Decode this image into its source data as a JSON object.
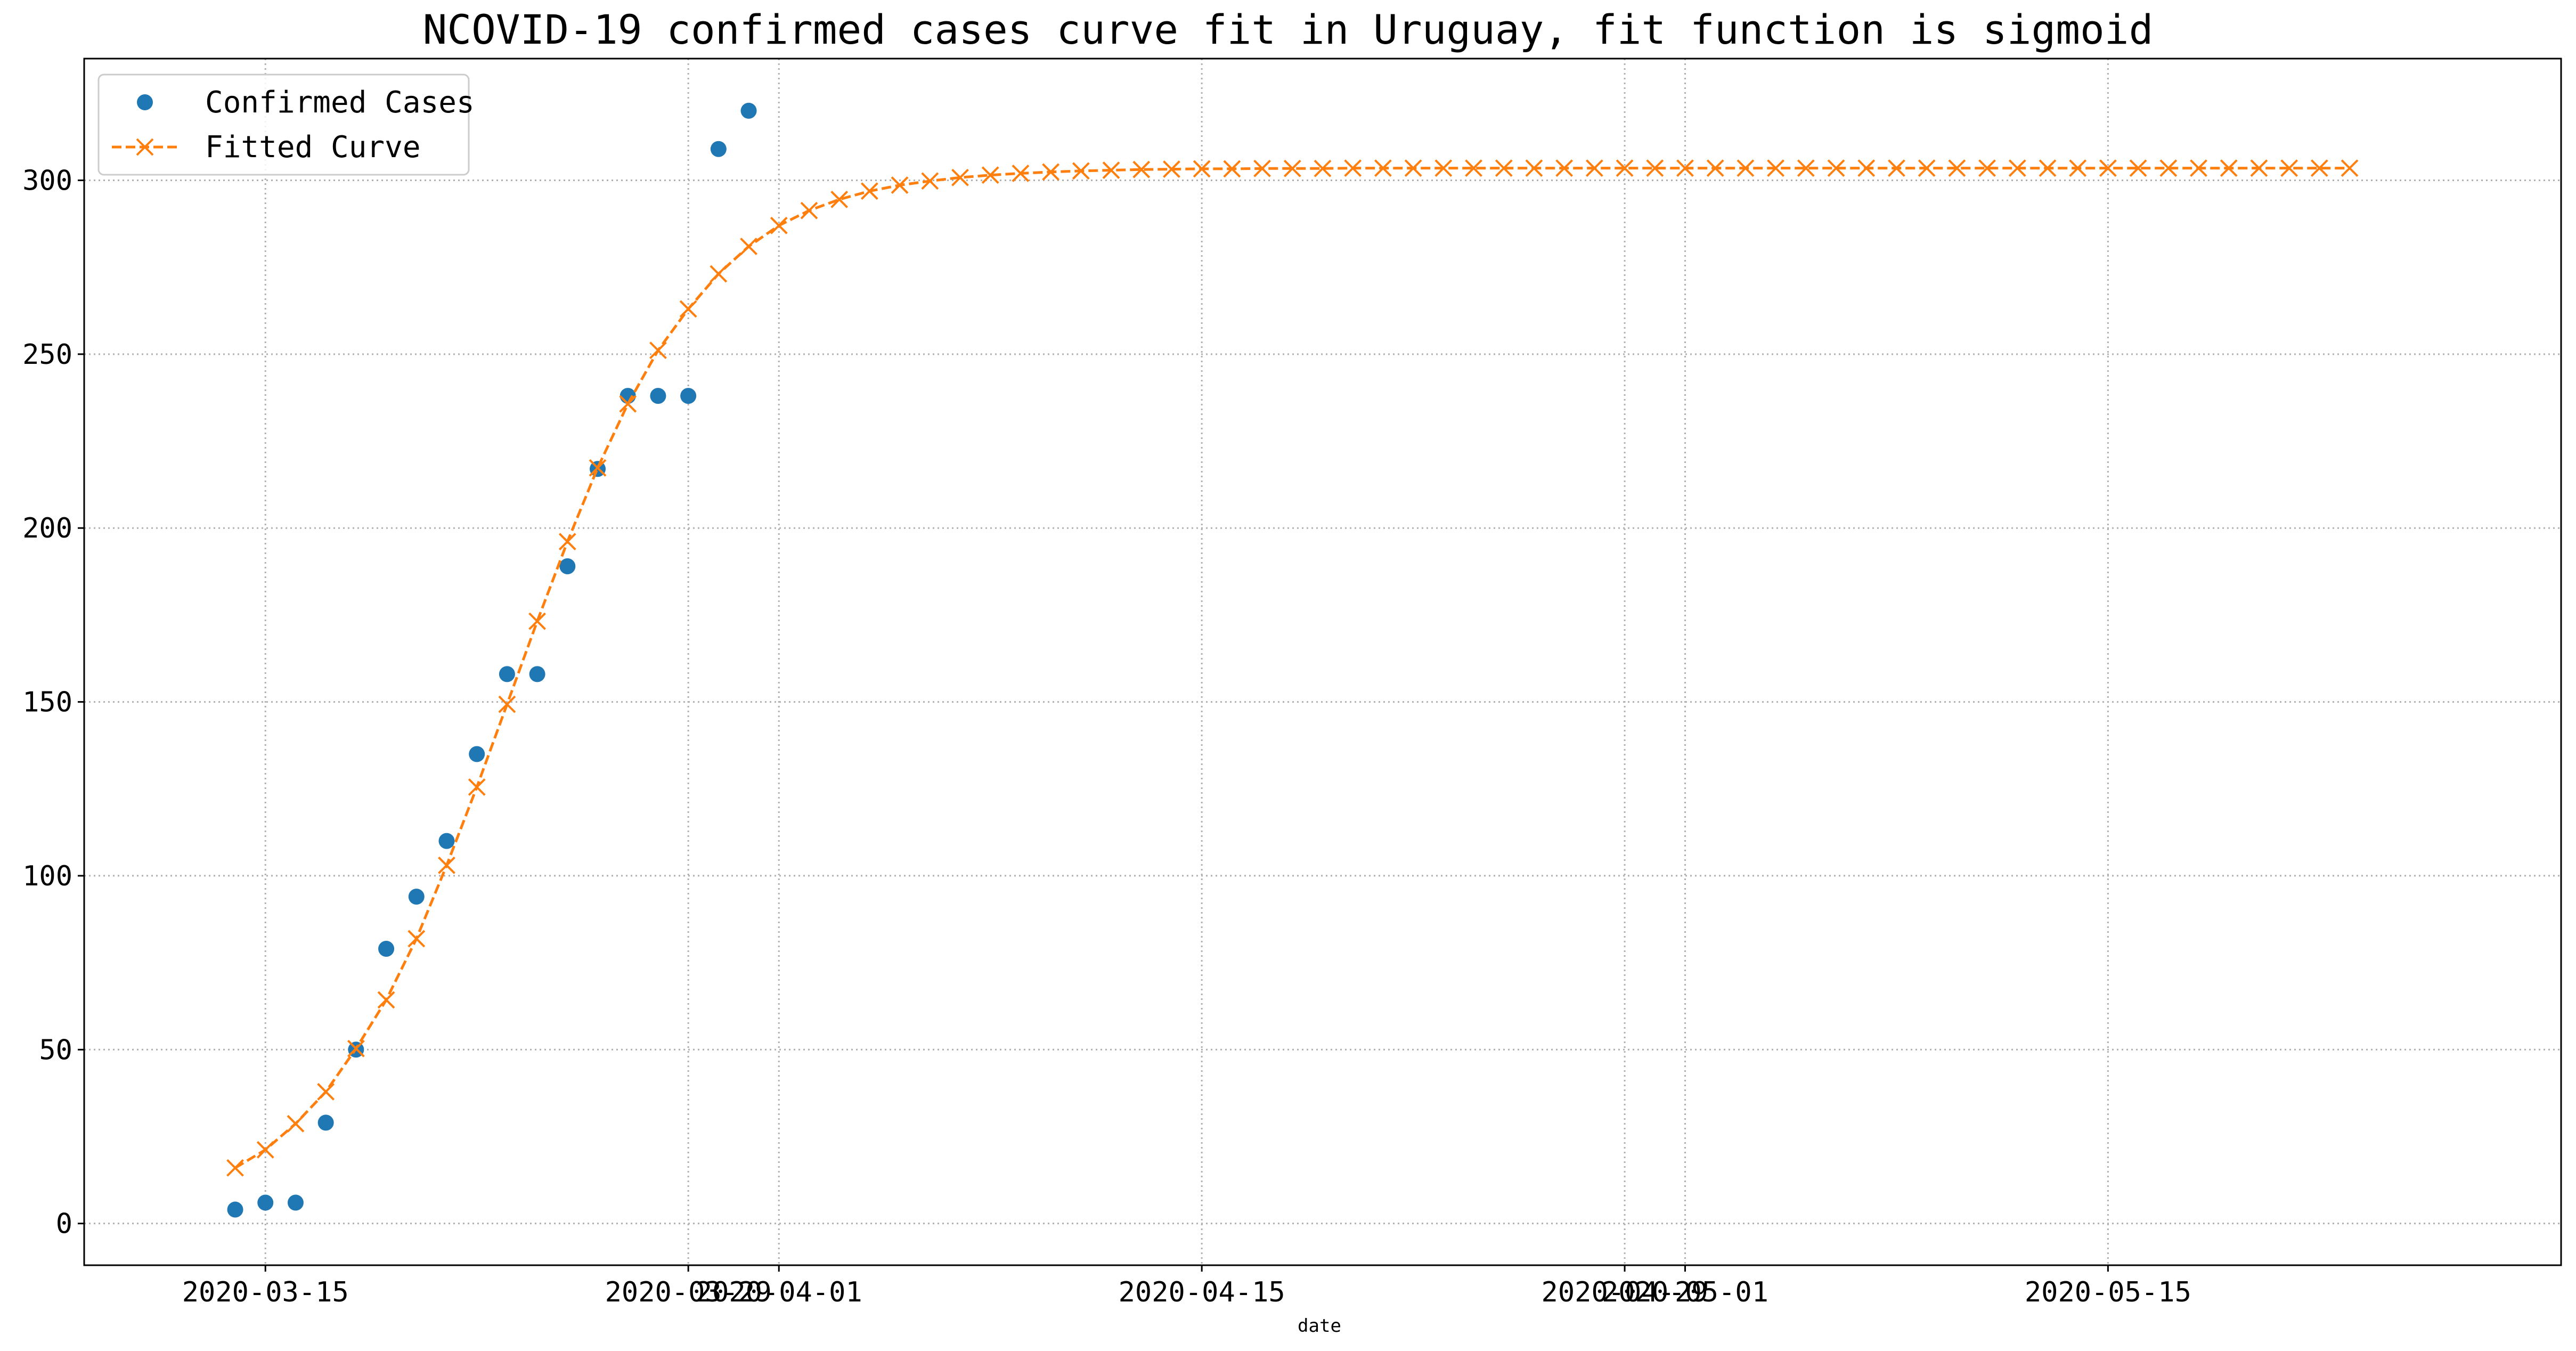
{
  "chart_data": {
    "type": "scatter",
    "title": "NCOVID-19 confirmed cases curve fit in Uruguay, fit function is sigmoid",
    "xlabel": "date",
    "ylabel": "",
    "x_axis": {
      "type": "date",
      "min": "2020-03-09",
      "max": "2020-05-30",
      "ticks": [
        {
          "date": "2020-03-15",
          "label": "2020-03-15"
        },
        {
          "date": "2020-03-29",
          "label": "2020-03-29"
        },
        {
          "date": "2020-04-01",
          "label": "2020-04-01"
        },
        {
          "date": "2020-04-15",
          "label": "2020-04-15"
        },
        {
          "date": "2020-04-29",
          "label": "2020-04-29"
        },
        {
          "date": "2020-05-01",
          "label": "2020-05-01"
        },
        {
          "date": "2020-05-15",
          "label": "2020-05-15"
        }
      ]
    },
    "y_axis": {
      "min": -12,
      "max": 335,
      "ticks": [
        0,
        50,
        100,
        150,
        200,
        250,
        300
      ]
    },
    "grid": true,
    "legend_position": "top-left",
    "series": [
      {
        "name": "Confirmed Cases",
        "kind": "points",
        "color": "#1f77b4",
        "marker": "circle",
        "points": [
          {
            "x": "2020-03-14",
            "y": 4
          },
          {
            "x": "2020-03-15",
            "y": 6
          },
          {
            "x": "2020-03-16",
            "y": 6
          },
          {
            "x": "2020-03-17",
            "y": 29
          },
          {
            "x": "2020-03-18",
            "y": 50
          },
          {
            "x": "2020-03-19",
            "y": 79
          },
          {
            "x": "2020-03-20",
            "y": 94
          },
          {
            "x": "2020-03-21",
            "y": 110
          },
          {
            "x": "2020-03-22",
            "y": 135
          },
          {
            "x": "2020-03-23",
            "y": 158
          },
          {
            "x": "2020-03-24",
            "y": 158
          },
          {
            "x": "2020-03-25",
            "y": 189
          },
          {
            "x": "2020-03-26",
            "y": 217
          },
          {
            "x": "2020-03-27",
            "y": 238
          },
          {
            "x": "2020-03-28",
            "y": 238
          },
          {
            "x": "2020-03-29",
            "y": 238
          },
          {
            "x": "2020-03-30",
            "y": 309
          },
          {
            "x": "2020-03-31",
            "y": 320
          }
        ]
      },
      {
        "name": "Fitted Curve",
        "kind": "dashed-line-x-markers",
        "color": "#ff7f0e",
        "marker": "x",
        "start_date": "2020-03-14",
        "values": [
          16.0,
          21.2,
          28.7,
          37.9,
          50.3,
          64.3,
          81.9,
          103.0,
          125.5,
          149.3,
          173.2,
          196.1,
          217.3,
          235.7,
          251.1,
          263.0,
          273.1,
          281.0,
          287.0,
          291.3,
          294.5,
          296.9,
          298.6,
          299.8,
          300.8,
          301.5,
          302.0,
          302.4,
          302.7,
          302.9,
          303.1,
          303.2,
          303.3,
          303.3,
          303.4,
          303.4,
          303.4,
          303.5,
          303.5,
          303.5,
          303.5,
          303.5,
          303.5,
          303.5,
          303.5,
          303.5,
          303.5,
          303.5,
          303.5,
          303.5,
          303.5,
          303.5,
          303.5,
          303.5,
          303.5,
          303.5,
          303.5,
          303.5,
          303.5,
          303.5,
          303.5,
          303.5,
          303.5,
          303.5,
          303.5,
          303.5,
          303.5,
          303.5,
          303.5,
          303.5,
          303.5
        ]
      }
    ]
  }
}
